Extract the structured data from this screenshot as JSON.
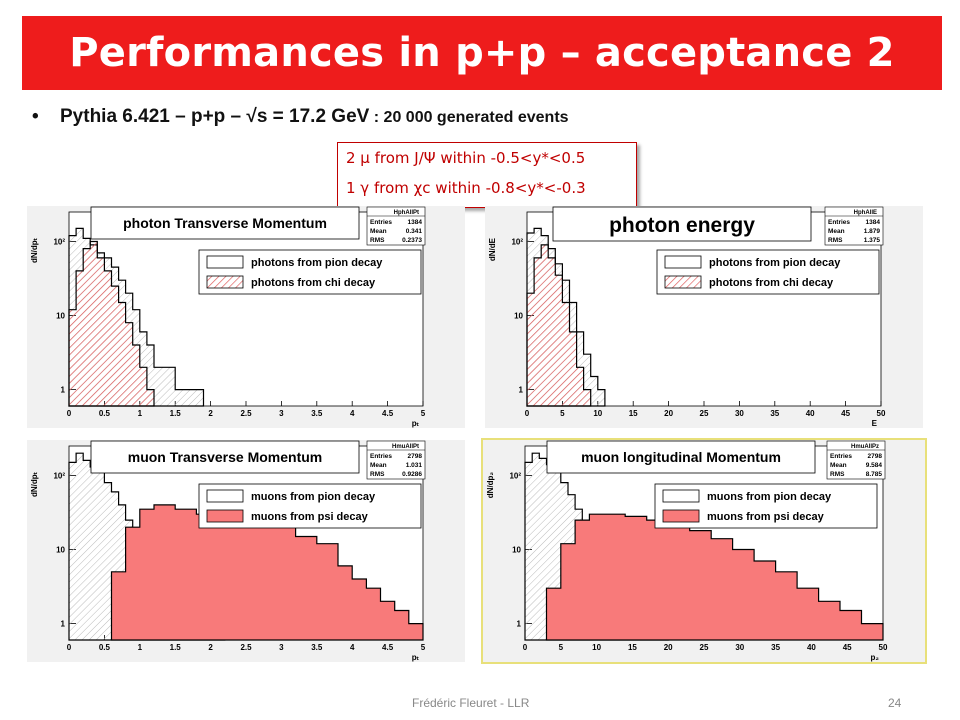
{
  "slide": {
    "title": "Performances in p+p – acceptance 2",
    "bullet_main": "Pythia 6.421 – p+p – √s = 17.2 GeV",
    "bullet_small": " : 20 000 generated events",
    "note_line1": "2 μ from J/Ψ within -0.5<y*<0.5",
    "note_line2": "1 γ from χc within -0.8<y*<-0.3",
    "footer_author": "Frédéric Fleuret - LLR",
    "footer_page": "24",
    "colors": {
      "title_bg": "#ee1c1c",
      "signal_fill": "#f87a7a",
      "hatch_red": "#e06060",
      "highlight_frame": "#e8e07a"
    }
  },
  "chart_data": [
    {
      "type": "area",
      "title": "photon Transverse Momentum",
      "ylabel": "dN/dpₜ",
      "xlabel": "pₜ",
      "xlim": [
        0,
        5
      ],
      "xticks": [
        "0",
        "0.5",
        "1",
        "1.5",
        "2",
        "2.5",
        "3",
        "3.5",
        "4",
        "4.5",
        "5"
      ],
      "yscale": "log",
      "ylim": [
        0.6,
        250
      ],
      "yticks": [
        "1",
        "10",
        "10²"
      ],
      "stats": {
        "name": "HphAllPt",
        "rows": [
          [
            "Entries",
            "1384"
          ],
          [
            "Mean",
            "0.341"
          ],
          [
            "RMS",
            "0.2373"
          ]
        ]
      },
      "legend": {
        "placement": "right-middle",
        "entries": [
          "photons from pion decay",
          "photons from chi decay"
        ]
      },
      "series": [
        {
          "name": "photons from pion decay",
          "style": "outline",
          "x": [
            0,
            0.1,
            0.2,
            0.3,
            0.4,
            0.5,
            0.6,
            0.7,
            0.8,
            0.9,
            1.0,
            1.1,
            1.2,
            1.5,
            1.7
          ],
          "y": [
            120,
            150,
            110,
            90,
            70,
            60,
            45,
            30,
            20,
            12,
            6,
            4,
            2,
            1,
            1
          ]
        },
        {
          "name": "photons from chi decay",
          "style": "filled",
          "x": [
            0,
            0.1,
            0.2,
            0.3,
            0.4,
            0.5,
            0.6,
            0.7,
            0.8,
            0.9,
            1.0,
            1.1
          ],
          "y": [
            12,
            40,
            80,
            100,
            60,
            40,
            25,
            15,
            8,
            4,
            2,
            1
          ]
        }
      ]
    },
    {
      "type": "area",
      "title": "photon energy",
      "ylabel": "dN/dE",
      "xlabel": "E",
      "xlim": [
        0,
        50
      ],
      "xticks": [
        "0",
        "5",
        "10",
        "15",
        "20",
        "25",
        "30",
        "35",
        "40",
        "45",
        "50"
      ],
      "yscale": "log",
      "ylim": [
        0.6,
        250
      ],
      "yticks": [
        "1",
        "10",
        "10²"
      ],
      "stats": {
        "name": "HphAllE",
        "rows": [
          [
            "Entries",
            "1384"
          ],
          [
            "Mean",
            "1.879"
          ],
          [
            "RMS",
            "1.375"
          ]
        ]
      },
      "legend": {
        "placement": "right-middle",
        "entries": [
          "photons from pion decay",
          "photons from chi decay"
        ]
      },
      "series": [
        {
          "name": "photons from pion decay",
          "style": "outline",
          "x": [
            0,
            1,
            2,
            3,
            4,
            5,
            6,
            7,
            8,
            9,
            10
          ],
          "y": [
            130,
            150,
            120,
            80,
            50,
            30,
            15,
            6,
            3,
            1.5,
            1
          ]
        },
        {
          "name": "photons from chi decay",
          "style": "filled",
          "x": [
            0,
            1,
            2,
            3,
            4,
            5,
            6,
            7,
            8
          ],
          "y": [
            20,
            60,
            90,
            60,
            35,
            15,
            6,
            2,
            1
          ]
        }
      ]
    },
    {
      "type": "area",
      "title": "muon Transverse Momentum",
      "ylabel": "dN/dpₜ",
      "xlabel": "pₜ",
      "xlim": [
        0,
        5
      ],
      "xticks": [
        "0",
        "0.5",
        "1",
        "1.5",
        "2",
        "2.5",
        "3",
        "3.5",
        "4",
        "4.5",
        "5"
      ],
      "yscale": "log",
      "ylim": [
        0.6,
        250
      ],
      "yticks": [
        "1",
        "10",
        "10²"
      ],
      "stats": {
        "name": "HmuAllPt",
        "rows": [
          [
            "Entries",
            "2798"
          ],
          [
            "Mean",
            "1.031"
          ],
          [
            "RMS",
            "0.9286"
          ]
        ]
      },
      "legend": {
        "placement": "right-middle",
        "entries": [
          "muons from pion decay",
          "muons from psi decay"
        ]
      },
      "series": [
        {
          "name": "muons from pion decay",
          "style": "outline",
          "x": [
            0,
            0.1,
            0.2,
            0.3,
            0.4,
            0.5,
            0.6,
            0.7,
            0.8,
            0.9,
            1.0,
            1.1,
            1.2,
            1.4,
            1.6,
            1.9
          ],
          "y": [
            150,
            200,
            160,
            130,
            110,
            80,
            60,
            40,
            25,
            15,
            10,
            6,
            4,
            2,
            1.5,
            1
          ]
        },
        {
          "name": "muons from psi decay",
          "style": "filled",
          "x": [
            0.6,
            0.8,
            1.0,
            1.2,
            1.5,
            1.8,
            2.0,
            2.4,
            2.8,
            3.2,
            3.5,
            3.8,
            4.0,
            4.2,
            4.4,
            4.6,
            4.8
          ],
          "y": [
            5,
            20,
            35,
            40,
            35,
            30,
            30,
            28,
            22,
            15,
            12,
            6,
            4,
            3,
            2,
            1.5,
            1
          ]
        }
      ]
    },
    {
      "type": "area",
      "title": "muon longitudinal Momentum",
      "ylabel": "dN/dp₂",
      "xlabel": "p₂",
      "xlim": [
        0,
        50
      ],
      "xticks": [
        "0",
        "5",
        "10",
        "15",
        "20",
        "25",
        "30",
        "35",
        "40",
        "45",
        "50"
      ],
      "yscale": "log",
      "ylim": [
        0.6,
        250
      ],
      "yticks": [
        "1",
        "10",
        "10²"
      ],
      "stats": {
        "name": "HmuAllPz",
        "rows": [
          [
            "Entries",
            "2798"
          ],
          [
            "Mean",
            "9.584"
          ],
          [
            "RMS",
            "8.785"
          ]
        ]
      },
      "legend": {
        "placement": "right-middle",
        "entries": [
          "muons from pion decay",
          "muons from psi decay"
        ]
      },
      "series": [
        {
          "name": "muons from pion decay",
          "style": "outline",
          "x": [
            0,
            1,
            2,
            3,
            4,
            5,
            6,
            7,
            8,
            9,
            10,
            11,
            12,
            14,
            16,
            18
          ],
          "y": [
            150,
            200,
            170,
            140,
            110,
            80,
            55,
            35,
            22,
            14,
            8,
            5,
            3,
            2,
            1.5,
            1
          ]
        },
        {
          "name": "muons from psi decay",
          "style": "filled",
          "x": [
            3,
            5,
            7,
            9,
            11,
            14,
            17,
            20,
            23,
            26,
            29,
            32,
            35,
            38,
            41,
            44,
            47
          ],
          "y": [
            3,
            12,
            25,
            30,
            30,
            28,
            25,
            22,
            18,
            14,
            10,
            7,
            5,
            3,
            2,
            1.5,
            1
          ]
        }
      ]
    }
  ]
}
